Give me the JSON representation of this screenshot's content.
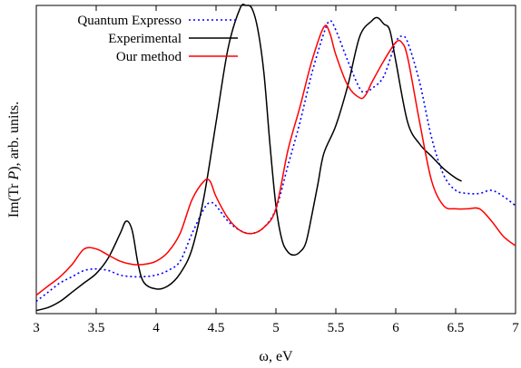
{
  "chart_data": {
    "type": "line",
    "xlabel": "ω, eV",
    "ylabel_prefix": "Im(Tr ",
    "ylabel_var": "P",
    "ylabel_suffix": "), arb. units.",
    "xlim": [
      3,
      7
    ],
    "ylim": [
      0,
      1
    ],
    "y_ticks_shown": false,
    "grid": false,
    "legend_position": "top-left",
    "x_ticks": [
      "3",
      "3.5",
      "4",
      "4.5",
      "5",
      "5.5",
      "6",
      "6.5",
      "7"
    ],
    "series": [
      {
        "name": "Quantum Expresso",
        "color": "#0000ff",
        "style": "dotted",
        "x": [
          3.0,
          3.1,
          3.2,
          3.3,
          3.4,
          3.5,
          3.6,
          3.7,
          3.8,
          3.9,
          4.0,
          4.1,
          4.2,
          4.3,
          4.4,
          4.45,
          4.5,
          4.6,
          4.7,
          4.8,
          4.9,
          5.0,
          5.1,
          5.2,
          5.3,
          5.4,
          5.45,
          5.5,
          5.6,
          5.7,
          5.75,
          5.8,
          5.9,
          6.0,
          6.05,
          6.1,
          6.2,
          6.3,
          6.4,
          6.5,
          6.6,
          6.7,
          6.8,
          6.9,
          7.0
        ],
        "y": [
          0.04,
          0.07,
          0.1,
          0.12,
          0.14,
          0.145,
          0.14,
          0.125,
          0.12,
          0.12,
          0.125,
          0.14,
          0.17,
          0.26,
          0.34,
          0.36,
          0.35,
          0.3,
          0.27,
          0.26,
          0.28,
          0.34,
          0.48,
          0.62,
          0.78,
          0.91,
          0.95,
          0.92,
          0.82,
          0.73,
          0.72,
          0.73,
          0.77,
          0.88,
          0.9,
          0.88,
          0.75,
          0.57,
          0.45,
          0.4,
          0.39,
          0.39,
          0.4,
          0.38,
          0.35
        ]
      },
      {
        "name": "Experimental",
        "color": "#000000",
        "style": "solid",
        "x": [
          3.0,
          3.1,
          3.2,
          3.3,
          3.4,
          3.5,
          3.6,
          3.7,
          3.75,
          3.8,
          3.85,
          3.9,
          4.0,
          4.1,
          4.2,
          4.3,
          4.4,
          4.5,
          4.6,
          4.7,
          4.75,
          4.8,
          4.85,
          4.9,
          4.95,
          5.0,
          5.05,
          5.1,
          5.15,
          5.2,
          5.25,
          5.3,
          5.35,
          5.4,
          5.5,
          5.6,
          5.7,
          5.8,
          5.85,
          5.9,
          5.95,
          6.0,
          6.1,
          6.2,
          6.3,
          6.4,
          6.5,
          6.55
        ],
        "y": [
          0.01,
          0.02,
          0.04,
          0.07,
          0.1,
          0.13,
          0.18,
          0.26,
          0.3,
          0.27,
          0.16,
          0.1,
          0.08,
          0.09,
          0.13,
          0.21,
          0.38,
          0.62,
          0.86,
          0.99,
          1.0,
          0.99,
          0.92,
          0.78,
          0.55,
          0.35,
          0.24,
          0.2,
          0.19,
          0.2,
          0.23,
          0.32,
          0.42,
          0.52,
          0.61,
          0.74,
          0.9,
          0.95,
          0.96,
          0.94,
          0.92,
          0.82,
          0.62,
          0.55,
          0.51,
          0.47,
          0.44,
          0.43
        ]
      },
      {
        "name": "Our method",
        "color": "#ff0000",
        "style": "solid",
        "x": [
          3.0,
          3.1,
          3.2,
          3.3,
          3.4,
          3.5,
          3.6,
          3.7,
          3.8,
          3.9,
          4.0,
          4.1,
          4.2,
          4.3,
          4.4,
          4.45,
          4.5,
          4.6,
          4.7,
          4.8,
          4.9,
          5.0,
          5.1,
          5.2,
          5.3,
          5.4,
          5.45,
          5.5,
          5.6,
          5.7,
          5.75,
          5.8,
          5.9,
          6.0,
          6.05,
          6.1,
          6.2,
          6.3,
          6.4,
          6.5,
          6.6,
          6.7,
          6.8,
          6.9,
          7.0
        ],
        "y": [
          0.06,
          0.09,
          0.12,
          0.16,
          0.21,
          0.21,
          0.19,
          0.17,
          0.16,
          0.16,
          0.17,
          0.2,
          0.26,
          0.37,
          0.43,
          0.43,
          0.38,
          0.31,
          0.27,
          0.26,
          0.28,
          0.34,
          0.53,
          0.67,
          0.82,
          0.93,
          0.91,
          0.84,
          0.74,
          0.7,
          0.71,
          0.75,
          0.82,
          0.88,
          0.88,
          0.83,
          0.62,
          0.43,
          0.35,
          0.34,
          0.34,
          0.34,
          0.3,
          0.25,
          0.22
        ]
      }
    ]
  }
}
